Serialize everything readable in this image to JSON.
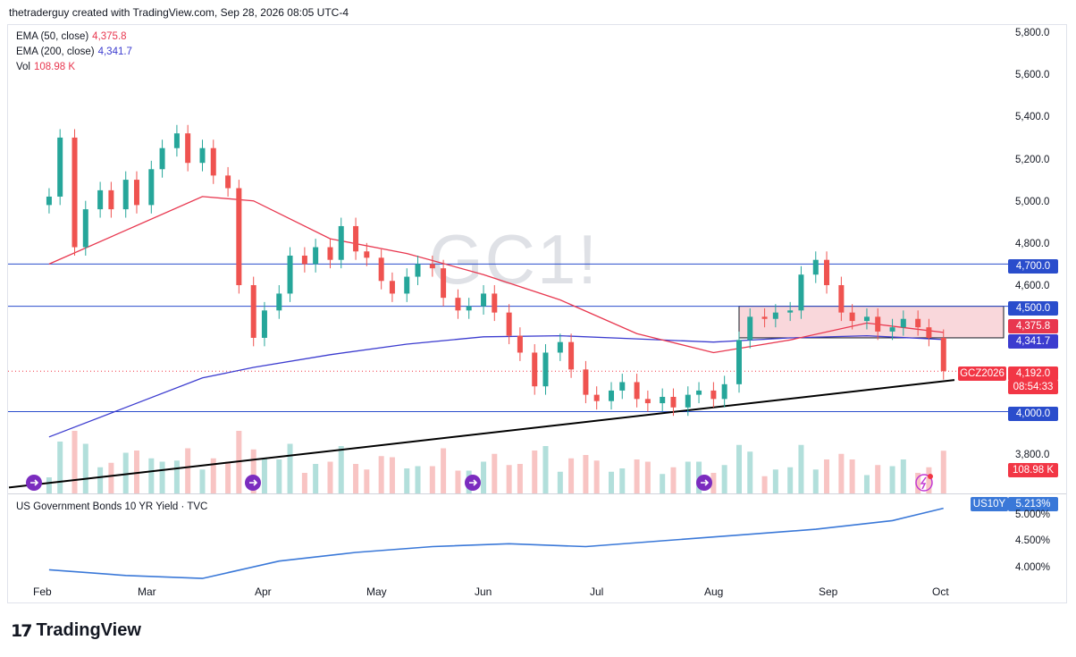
{
  "header": {
    "credit": "thetraderguy created with TradingView.com, Sep 28, 2026 08:05 UTC-4"
  },
  "watermark": "GC1!",
  "legend": [
    {
      "label": "EMA (50, close)",
      "value": "4,375.8",
      "color": "#e8374f"
    },
    {
      "label": "EMA (200, close)",
      "value": "4,341.7",
      "color": "#3c3ccf"
    },
    {
      "label": "Vol",
      "value": "108.98 K",
      "color": "#e8374f"
    }
  ],
  "price_axis": [
    "5,800.0",
    "5,600.0",
    "5,400.0",
    "5,200.0",
    "5,000.0",
    "4,800.0",
    "4,600.0",
    "3,800.0"
  ],
  "tags": {
    "level_4700": "4,700.0",
    "level_4500": "4,500.0",
    "ema50": "4,375.8",
    "ema200": "4,341.7",
    "symbol": "GCZ2026",
    "last_price": "4,192.0",
    "countdown": "08:54:33",
    "level_4000": "4,000.0",
    "volume": "108.98 K"
  },
  "months": [
    "Feb",
    "Mar",
    "Apr",
    "May",
    "Jun",
    "Jul",
    "Aug",
    "Sep",
    "Oct"
  ],
  "indicator": {
    "title": "US Government Bonds 10 YR Yield · TVC",
    "symbol": "US10Y",
    "value": "5.213%",
    "axis": [
      "5.000%",
      "4.500%",
      "4.000%"
    ]
  },
  "brand": "TradingView",
  "colors": {
    "up": "#26a69a",
    "down": "#ef5350",
    "ema50": "#e8374f",
    "ema200": "#3c3ccf",
    "level": "#2a4dcc",
    "box": "#f7c9cf",
    "yield": "#3a78d8"
  },
  "chart_data": {
    "type": "candlestick",
    "symbol": "GC1!",
    "y_range": [
      3700,
      5850
    ],
    "levels": [
      4700,
      4500,
      4000
    ],
    "last_price": 4192.0,
    "box": {
      "from": "2026-08-03",
      "to": "2026-09-30",
      "top": 4500,
      "bottom": 4350
    },
    "trendline": [
      {
        "date": "2026-01-15",
        "price": 3640
      },
      {
        "date": "2026-10-01",
        "price": 4150
      }
    ],
    "closes": [
      {
        "date": "2026-01-26",
        "value": 5020
      },
      {
        "date": "2026-01-29",
        "value": 5300
      },
      {
        "date": "2026-02-02",
        "value": 4780
      },
      {
        "date": "2026-02-05",
        "value": 4960
      },
      {
        "date": "2026-02-09",
        "value": 5050
      },
      {
        "date": "2026-02-12",
        "value": 4960
      },
      {
        "date": "2026-02-16",
        "value": 5100
      },
      {
        "date": "2026-02-19",
        "value": 4980
      },
      {
        "date": "2026-02-23",
        "value": 5150
      },
      {
        "date": "2026-02-26",
        "value": 5250
      },
      {
        "date": "2026-03-02",
        "value": 5320
      },
      {
        "date": "2026-03-05",
        "value": 5180
      },
      {
        "date": "2026-03-09",
        "value": 5250
      },
      {
        "date": "2026-03-12",
        "value": 5120
      },
      {
        "date": "2026-03-16",
        "value": 5060
      },
      {
        "date": "2026-03-19",
        "value": 4600
      },
      {
        "date": "2026-03-23",
        "value": 4350
      },
      {
        "date": "2026-03-26",
        "value": 4480
      },
      {
        "date": "2026-03-30",
        "value": 4560
      },
      {
        "date": "2026-04-02",
        "value": 4740
      },
      {
        "date": "2026-04-06",
        "value": 4700
      },
      {
        "date": "2026-04-09",
        "value": 4780
      },
      {
        "date": "2026-04-13",
        "value": 4720
      },
      {
        "date": "2026-04-16",
        "value": 4880
      },
      {
        "date": "2026-04-20",
        "value": 4760
      },
      {
        "date": "2026-04-23",
        "value": 4730
      },
      {
        "date": "2026-04-27",
        "value": 4620
      },
      {
        "date": "2026-04-30",
        "value": 4560
      },
      {
        "date": "2026-05-04",
        "value": 4640
      },
      {
        "date": "2026-05-07",
        "value": 4700
      },
      {
        "date": "2026-05-11",
        "value": 4680
      },
      {
        "date": "2026-05-14",
        "value": 4540
      },
      {
        "date": "2026-05-18",
        "value": 4480
      },
      {
        "date": "2026-05-21",
        "value": 4500
      },
      {
        "date": "2026-05-25",
        "value": 4560
      },
      {
        "date": "2026-05-28",
        "value": 4470
      },
      {
        "date": "2026-06-01",
        "value": 4360
      },
      {
        "date": "2026-06-04",
        "value": 4280
      },
      {
        "date": "2026-06-08",
        "value": 4120
      },
      {
        "date": "2026-06-11",
        "value": 4280
      },
      {
        "date": "2026-06-15",
        "value": 4330
      },
      {
        "date": "2026-06-18",
        "value": 4200
      },
      {
        "date": "2026-06-22",
        "value": 4080
      },
      {
        "date": "2026-06-25",
        "value": 4050
      },
      {
        "date": "2026-06-29",
        "value": 4100
      },
      {
        "date": "2026-07-02",
        "value": 4140
      },
      {
        "date": "2026-07-06",
        "value": 4060
      },
      {
        "date": "2026-07-09",
        "value": 4040
      },
      {
        "date": "2026-07-13",
        "value": 4070
      },
      {
        "date": "2026-07-16",
        "value": 4020
      },
      {
        "date": "2026-07-20",
        "value": 4080
      },
      {
        "date": "2026-07-23",
        "value": 4100
      },
      {
        "date": "2026-07-27",
        "value": 4060
      },
      {
        "date": "2026-07-30",
        "value": 4130
      },
      {
        "date": "2026-08-03",
        "value": 4340
      },
      {
        "date": "2026-08-06",
        "value": 4450
      },
      {
        "date": "2026-08-10",
        "value": 4440
      },
      {
        "date": "2026-08-13",
        "value": 4470
      },
      {
        "date": "2026-08-17",
        "value": 4480
      },
      {
        "date": "2026-08-20",
        "value": 4650
      },
      {
        "date": "2026-08-24",
        "value": 4720
      },
      {
        "date": "2026-08-27",
        "value": 4600
      },
      {
        "date": "2026-08-31",
        "value": 4470
      },
      {
        "date": "2026-09-03",
        "value": 4430
      },
      {
        "date": "2026-09-07",
        "value": 4450
      },
      {
        "date": "2026-09-10",
        "value": 4380
      },
      {
        "date": "2026-09-14",
        "value": 4400
      },
      {
        "date": "2026-09-17",
        "value": 4440
      },
      {
        "date": "2026-09-21",
        "value": 4400
      },
      {
        "date": "2026-09-24",
        "value": 4350
      },
      {
        "date": "2026-09-28",
        "value": 4192
      }
    ],
    "ema50": [
      {
        "date": "2026-01-26",
        "value": 4700
      },
      {
        "date": "2026-02-16",
        "value": 4860
      },
      {
        "date": "2026-03-09",
        "value": 5020
      },
      {
        "date": "2026-03-23",
        "value": 5000
      },
      {
        "date": "2026-04-13",
        "value": 4820
      },
      {
        "date": "2026-05-04",
        "value": 4750
      },
      {
        "date": "2026-05-25",
        "value": 4650
      },
      {
        "date": "2026-06-15",
        "value": 4530
      },
      {
        "date": "2026-07-06",
        "value": 4370
      },
      {
        "date": "2026-07-27",
        "value": 4280
      },
      {
        "date": "2026-08-17",
        "value": 4340
      },
      {
        "date": "2026-09-07",
        "value": 4420
      },
      {
        "date": "2026-09-28",
        "value": 4375.8
      }
    ],
    "ema200": [
      {
        "date": "2026-01-26",
        "value": 3880
      },
      {
        "date": "2026-02-16",
        "value": 4020
      },
      {
        "date": "2026-03-09",
        "value": 4160
      },
      {
        "date": "2026-03-23",
        "value": 4210
      },
      {
        "date": "2026-04-13",
        "value": 4270
      },
      {
        "date": "2026-05-04",
        "value": 4320
      },
      {
        "date": "2026-05-25",
        "value": 4355
      },
      {
        "date": "2026-06-15",
        "value": 4360
      },
      {
        "date": "2026-07-06",
        "value": 4345
      },
      {
        "date": "2026-07-27",
        "value": 4330
      },
      {
        "date": "2026-08-17",
        "value": 4350
      },
      {
        "date": "2026-09-07",
        "value": 4360
      },
      {
        "date": "2026-09-28",
        "value": 4341.7
      }
    ],
    "yield": {
      "y_range": [
        3.8,
        5.3
      ],
      "points": [
        {
          "date": "2026-01-26",
          "value": 4.15
        },
        {
          "date": "2026-02-16",
          "value": 4.05
        },
        {
          "date": "2026-03-09",
          "value": 4.0
        },
        {
          "date": "2026-03-30",
          "value": 4.3
        },
        {
          "date": "2026-04-20",
          "value": 4.45
        },
        {
          "date": "2026-05-11",
          "value": 4.55
        },
        {
          "date": "2026-06-01",
          "value": 4.6
        },
        {
          "date": "2026-06-22",
          "value": 4.55
        },
        {
          "date": "2026-07-13",
          "value": 4.65
        },
        {
          "date": "2026-08-03",
          "value": 4.75
        },
        {
          "date": "2026-08-24",
          "value": 4.85
        },
        {
          "date": "2026-09-14",
          "value": 5.0
        },
        {
          "date": "2026-09-28",
          "value": 5.213
        }
      ]
    }
  }
}
